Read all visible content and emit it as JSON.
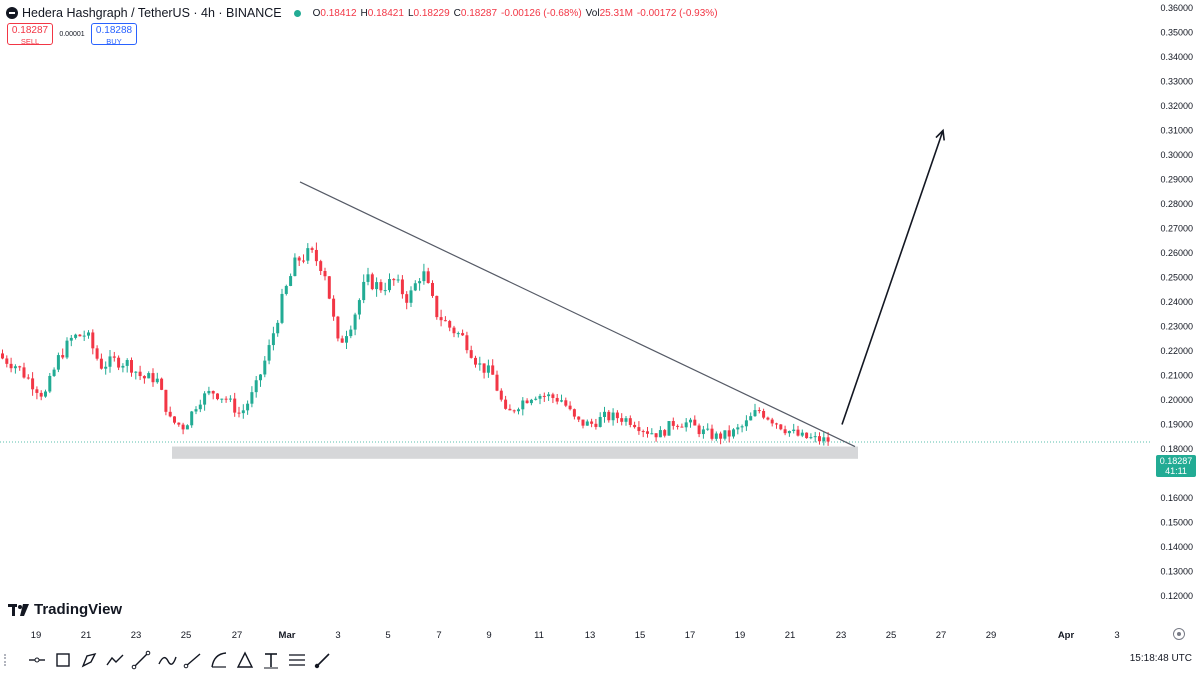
{
  "header": {
    "symbol": "Hedera Hashgraph / TetherUS · 4h · BINANCE",
    "ohlc": [
      {
        "key": "O",
        "value": "0.18412"
      },
      {
        "key": "H",
        "value": "0.18421"
      },
      {
        "key": "L",
        "value": "0.18229"
      },
      {
        "key": "C",
        "value": "0.18287"
      },
      {
        "key": "",
        "value": "-0.00126 (-0.68%)"
      },
      {
        "key": "Vol",
        "value": "25.31M"
      },
      {
        "key": "",
        "value": "-0.00172 (-0.93%)"
      }
    ]
  },
  "trade": {
    "sell_price": "0.18287",
    "sell_label": "SELL",
    "spread": "0.00001",
    "buy_price": "0.18288",
    "buy_label": "BUY"
  },
  "last_price": {
    "value": "0.18287",
    "countdown": "41:11"
  },
  "branding": {
    "name": "TradingView"
  },
  "status": {
    "clock": "15:18:48 UTC"
  },
  "colors": {
    "up": "#22ab94",
    "down": "#f23645",
    "axis_text": "#131722",
    "support_band": "#c8c9cc"
  },
  "toolbar": {
    "tools": [
      "horizontal-line-icon",
      "rectangle-icon",
      "path-icon",
      "polyline-icon",
      "trend-line-icon",
      "curve-icon",
      "ray-icon",
      "arc-icon",
      "triangle-icon",
      "text-icon",
      "fib-icon",
      "brush-icon"
    ]
  },
  "chart_data": {
    "type": "candlestick",
    "title": "",
    "xlabel": "",
    "ylabel": "",
    "ylim": [
      0.12,
      0.36
    ],
    "y_ticks": [
      "0.36000",
      "0.35000",
      "0.34000",
      "0.33000",
      "0.32000",
      "0.31000",
      "0.30000",
      "0.29000",
      "0.28000",
      "0.27000",
      "0.26000",
      "0.25000",
      "0.24000",
      "0.23000",
      "0.22000",
      "0.21000",
      "0.20000",
      "0.19000",
      "0.18000",
      "0.17000",
      "0.16000",
      "0.15000",
      "0.14000",
      "0.13000",
      "0.12000"
    ],
    "x_ticks": [
      "19",
      "21",
      "23",
      "25",
      "27",
      "Mar",
      "3",
      "5",
      "7",
      "9",
      "11",
      "13",
      "15",
      "17",
      "19",
      "21",
      "23",
      "25",
      "27",
      "29",
      "Apr",
      "3"
    ],
    "grid": false,
    "last_price": 0.18287,
    "support_band": [
      0.176,
      0.181
    ],
    "trendline": {
      "from": {
        "date": "Mar 2",
        "price": 0.289
      },
      "to": {
        "date": "Mar 23",
        "price": 0.181
      }
    },
    "projection_arrow": {
      "from": {
        "date": "Mar 23",
        "price": 0.19
      },
      "to": {
        "date": "Mar 27",
        "price": 0.31
      }
    },
    "candle_path_points": [
      [
        0.219,
        0.215
      ],
      [
        0.222,
        0.206
      ],
      [
        0.212,
        0.203
      ],
      [
        0.205,
        0.198
      ],
      [
        0.214,
        0.22
      ],
      [
        0.226,
        0.225
      ],
      [
        0.23,
        0.224
      ],
      [
        0.221,
        0.207
      ],
      [
        0.214,
        0.218
      ],
      [
        0.217,
        0.213
      ],
      [
        0.212,
        0.206
      ],
      [
        0.213,
        0.205
      ],
      [
        0.196,
        0.187
      ],
      [
        0.193,
        0.185
      ],
      [
        0.199,
        0.201
      ],
      [
        0.204,
        0.203
      ],
      [
        0.196,
        0.205
      ],
      [
        0.201,
        0.187
      ],
      [
        0.197,
        0.21
      ],
      [
        0.215,
        0.225
      ],
      [
        0.233,
        0.249
      ],
      [
        0.252,
        0.262
      ],
      [
        0.258,
        0.262
      ],
      [
        0.262,
        0.245
      ],
      [
        0.224,
        0.22
      ],
      [
        0.227,
        0.238
      ],
      [
        0.245,
        0.253
      ],
      [
        0.246,
        0.246
      ],
      [
        0.249,
        0.248
      ],
      [
        0.246,
        0.236
      ],
      [
        0.251,
        0.255
      ],
      [
        0.238,
        0.233
      ],
      [
        0.229,
        0.23
      ],
      [
        0.23,
        0.22
      ],
      [
        0.215,
        0.214
      ],
      [
        0.214,
        0.207
      ],
      [
        0.196,
        0.191
      ],
      [
        0.197,
        0.201
      ],
      [
        0.205,
        0.2
      ],
      [
        0.201,
        0.202
      ],
      [
        0.201,
        0.199
      ],
      [
        0.195,
        0.187
      ],
      [
        0.188,
        0.192
      ],
      [
        0.193,
        0.193
      ],
      [
        0.194,
        0.192
      ],
      [
        0.191,
        0.192
      ],
      [
        0.19,
        0.185
      ],
      [
        0.184,
        0.188
      ],
      [
        0.19,
        0.192
      ],
      [
        0.192,
        0.189
      ],
      [
        0.189,
        0.185
      ],
      [
        0.184,
        0.186
      ],
      [
        0.187,
        0.185
      ],
      [
        0.186,
        0.193
      ],
      [
        0.197,
        0.195
      ],
      [
        0.195,
        0.189
      ],
      [
        0.189,
        0.187
      ],
      [
        0.186,
        0.184
      ],
      [
        0.184,
        0.184
      ],
      [
        0.184,
        0.183
      ]
    ]
  }
}
